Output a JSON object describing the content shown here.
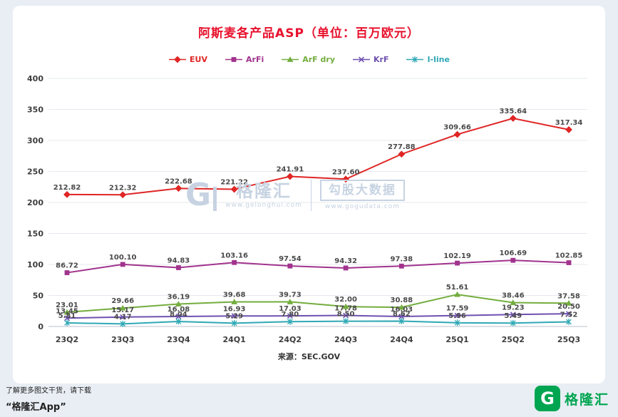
{
  "page": {
    "background": "#e9eef4",
    "card_background": "#ffffff"
  },
  "chart_data": {
    "type": "line",
    "title": "阿斯麦各产品ASP（单位：百万欧元）",
    "title_color": "#e8112d",
    "categories": [
      "23Q2",
      "23Q3",
      "23Q4",
      "24Q1",
      "24Q2",
      "24Q3",
      "24Q4",
      "25Q1",
      "25Q2",
      "25Q3"
    ],
    "xlabel": "",
    "ylabel": "",
    "ylim": [
      0,
      400
    ],
    "ytick_step": 50,
    "grid": true,
    "legend_position": "top",
    "source": "来源：SEC.GOV",
    "series": [
      {
        "name": "EUV",
        "color": "#e02525",
        "marker": "diamond",
        "values": [
          212.82,
          212.32,
          222.68,
          221.22,
          241.91,
          237.6,
          277.88,
          309.66,
          335.64,
          317.34
        ]
      },
      {
        "name": "ArFi",
        "color": "#a1338d",
        "marker": "square",
        "values": [
          86.72,
          100.1,
          94.83,
          103.16,
          97.54,
          94.32,
          97.38,
          102.19,
          106.69,
          102.85
        ]
      },
      {
        "name": "ArF dry",
        "color": "#73ad3e",
        "marker": "triangle",
        "values": [
          23.01,
          29.66,
          36.19,
          39.68,
          39.73,
          32.0,
          30.88,
          51.61,
          38.46,
          37.58
        ]
      },
      {
        "name": "KrF",
        "color": "#6f51b0",
        "marker": "x",
        "values": [
          13.45,
          15.17,
          16.08,
          16.93,
          17.03,
          17.78,
          16.03,
          17.59,
          19.23,
          20.5
        ]
      },
      {
        "name": "I-line",
        "color": "#2fa8b5",
        "marker": "asterisk",
        "values": [
          5.81,
          4.17,
          8.04,
          5.29,
          7.8,
          8.5,
          8.62,
          5.96,
          5.49,
          7.52
        ]
      }
    ]
  },
  "watermark": {
    "logo_letter": "G",
    "brand": "格隆汇",
    "brand_url": "www.gelonghui.com",
    "data_brand": "勾股大数据",
    "data_url": "www.gogudata.com"
  },
  "footer": {
    "promo": "了解更多图文干货，请下载",
    "app": "“格隆汇App”",
    "logo_letter": "G",
    "brand": "格隆汇"
  }
}
